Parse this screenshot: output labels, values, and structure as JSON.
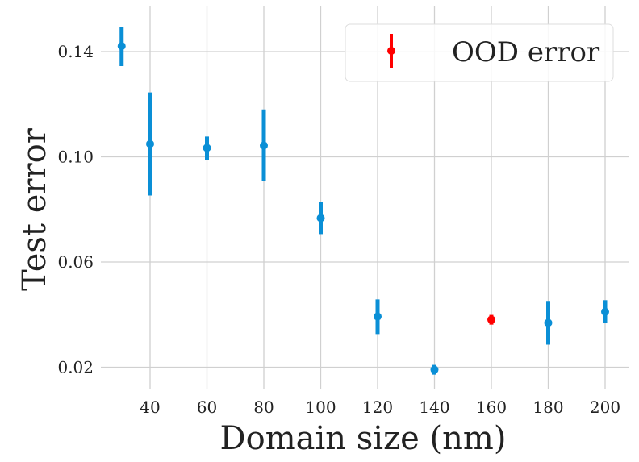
{
  "chart_data": {
    "type": "scatter",
    "xlabel": "Domain size (nm)",
    "ylabel": "Test error",
    "xlim": [
      25,
      208
    ],
    "ylim": [
      0.0125,
      0.1545
    ],
    "xticks": [
      40,
      60,
      80,
      100,
      120,
      140,
      160,
      180,
      200
    ],
    "yticks": [
      0.02,
      0.06,
      0.1,
      0.14
    ],
    "ytick_labels": [
      "0.02",
      "0.06",
      "0.10",
      "0.14"
    ],
    "grid": true,
    "legend": {
      "placement": "top-right",
      "entries": [
        {
          "label": "OOD error",
          "color": "#ff0000"
        }
      ]
    },
    "colors": {
      "in_domain": "#0a8fd6",
      "ood": "#ff0000"
    },
    "points": [
      {
        "x": 30,
        "y": 0.1421,
        "err_low": 0.1345,
        "err_high": 0.1494,
        "ood": false
      },
      {
        "x": 40,
        "y": 0.1049,
        "err_low": 0.0853,
        "err_high": 0.1245,
        "ood": false
      },
      {
        "x": 60,
        "y": 0.1034,
        "err_low": 0.0988,
        "err_high": 0.1077,
        "ood": false
      },
      {
        "x": 80,
        "y": 0.1043,
        "err_low": 0.0908,
        "err_high": 0.118,
        "ood": false
      },
      {
        "x": 100,
        "y": 0.0767,
        "err_low": 0.0706,
        "err_high": 0.0828,
        "ood": false
      },
      {
        "x": 120,
        "y": 0.0393,
        "err_low": 0.0326,
        "err_high": 0.0458,
        "ood": false
      },
      {
        "x": 140,
        "y": 0.0191,
        "err_low": 0.0172,
        "err_high": 0.0209,
        "ood": false
      },
      {
        "x": 160,
        "y": 0.0381,
        "err_low": 0.0362,
        "err_high": 0.0399,
        "ood": true
      },
      {
        "x": 180,
        "y": 0.0369,
        "err_low": 0.0286,
        "err_high": 0.0452,
        "ood": false
      },
      {
        "x": 200,
        "y": 0.0411,
        "err_low": 0.0367,
        "err_high": 0.0455,
        "ood": false
      }
    ]
  }
}
